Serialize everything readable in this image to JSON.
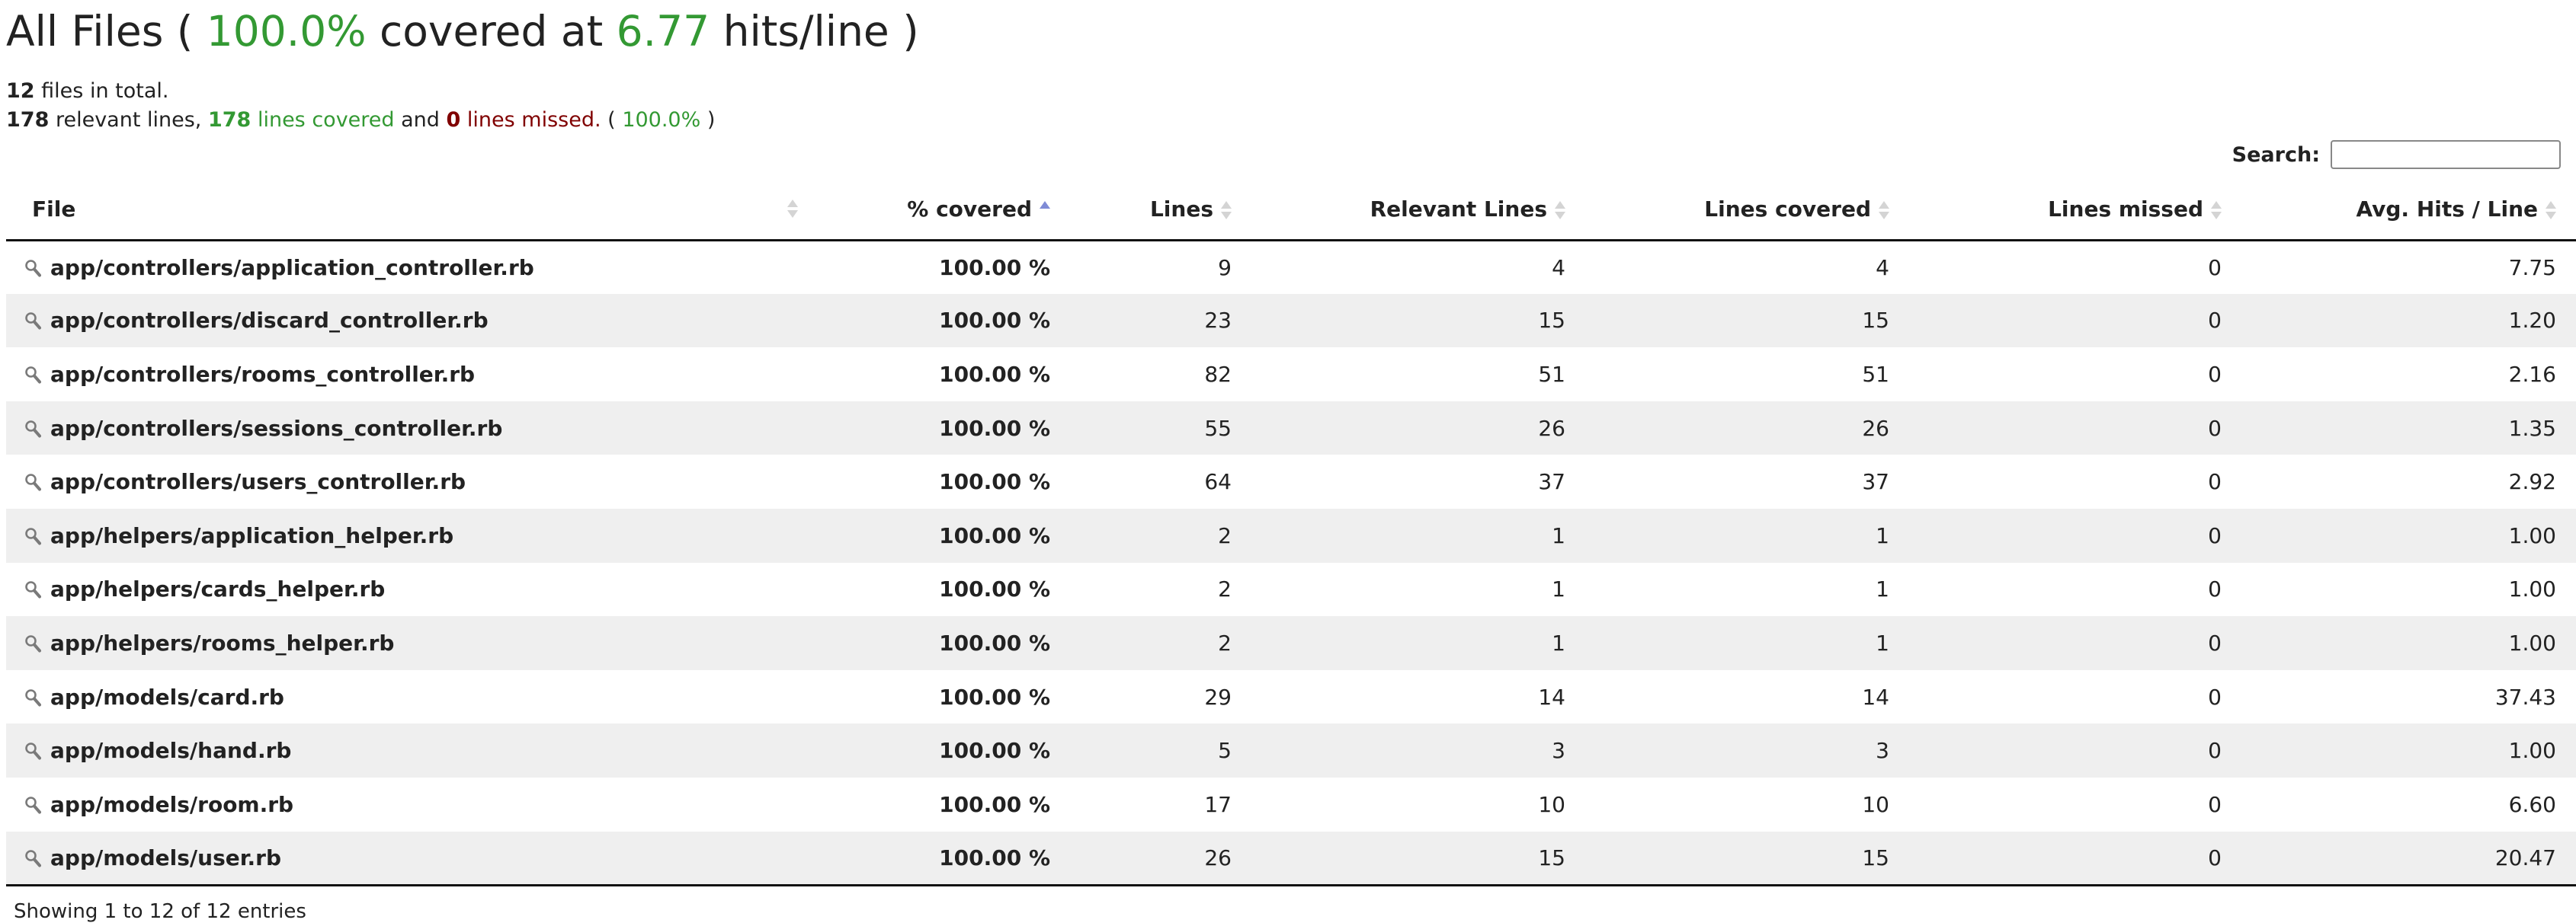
{
  "header": {
    "prefix": "All Files (",
    "percent": "100.0%",
    "middle": "covered at",
    "hits": "6.77",
    "suffix": "hits/line )"
  },
  "summary": {
    "file_count": "12",
    "files_text": "files in total.",
    "relevant_count": "178",
    "relevant_text": "relevant lines,",
    "covered_count": "178",
    "covered_text": "lines covered",
    "and_text": "and",
    "missed_count": "0",
    "missed_text": "lines missed.",
    "paren_open": "(",
    "percent": "100.0%",
    "paren_close": ")"
  },
  "search": {
    "label": "Search:",
    "value": ""
  },
  "table": {
    "columns": [
      "File",
      "% covered",
      "Lines",
      "Relevant Lines",
      "Lines covered",
      "Lines missed",
      "Avg. Hits / Line"
    ],
    "sorted_column": "% covered",
    "rows": [
      {
        "file": "app/controllers/application_controller.rb",
        "covered": "100.00 %",
        "lines": "9",
        "relevant": "4",
        "lines_covered": "4",
        "missed": "0",
        "avg": "7.75"
      },
      {
        "file": "app/controllers/discard_controller.rb",
        "covered": "100.00 %",
        "lines": "23",
        "relevant": "15",
        "lines_covered": "15",
        "missed": "0",
        "avg": "1.20"
      },
      {
        "file": "app/controllers/rooms_controller.rb",
        "covered": "100.00 %",
        "lines": "82",
        "relevant": "51",
        "lines_covered": "51",
        "missed": "0",
        "avg": "2.16"
      },
      {
        "file": "app/controllers/sessions_controller.rb",
        "covered": "100.00 %",
        "lines": "55",
        "relevant": "26",
        "lines_covered": "26",
        "missed": "0",
        "avg": "1.35"
      },
      {
        "file": "app/controllers/users_controller.rb",
        "covered": "100.00 %",
        "lines": "64",
        "relevant": "37",
        "lines_covered": "37",
        "missed": "0",
        "avg": "2.92"
      },
      {
        "file": "app/helpers/application_helper.rb",
        "covered": "100.00 %",
        "lines": "2",
        "relevant": "1",
        "lines_covered": "1",
        "missed": "0",
        "avg": "1.00"
      },
      {
        "file": "app/helpers/cards_helper.rb",
        "covered": "100.00 %",
        "lines": "2",
        "relevant": "1",
        "lines_covered": "1",
        "missed": "0",
        "avg": "1.00"
      },
      {
        "file": "app/helpers/rooms_helper.rb",
        "covered": "100.00 %",
        "lines": "2",
        "relevant": "1",
        "lines_covered": "1",
        "missed": "0",
        "avg": "1.00"
      },
      {
        "file": "app/models/card.rb",
        "covered": "100.00 %",
        "lines": "29",
        "relevant": "14",
        "lines_covered": "14",
        "missed": "0",
        "avg": "37.43"
      },
      {
        "file": "app/models/hand.rb",
        "covered": "100.00 %",
        "lines": "5",
        "relevant": "3",
        "lines_covered": "3",
        "missed": "0",
        "avg": "1.00"
      },
      {
        "file": "app/models/room.rb",
        "covered": "100.00 %",
        "lines": "17",
        "relevant": "10",
        "lines_covered": "10",
        "missed": "0",
        "avg": "6.60"
      },
      {
        "file": "app/models/user.rb",
        "covered": "100.00 %",
        "lines": "26",
        "relevant": "15",
        "lines_covered": "15",
        "missed": "0",
        "avg": "20.47"
      }
    ]
  },
  "footer": {
    "info": "Showing 1 to 12 of 12 entries"
  },
  "colors": {
    "covered_green": "#339933",
    "missed_red": "#990000",
    "row_stripe": "#efefef",
    "sort_active": "#7f8bd6"
  },
  "icons": {
    "file_row": "magnifier-icon",
    "sort": "sort-arrows-icon"
  }
}
